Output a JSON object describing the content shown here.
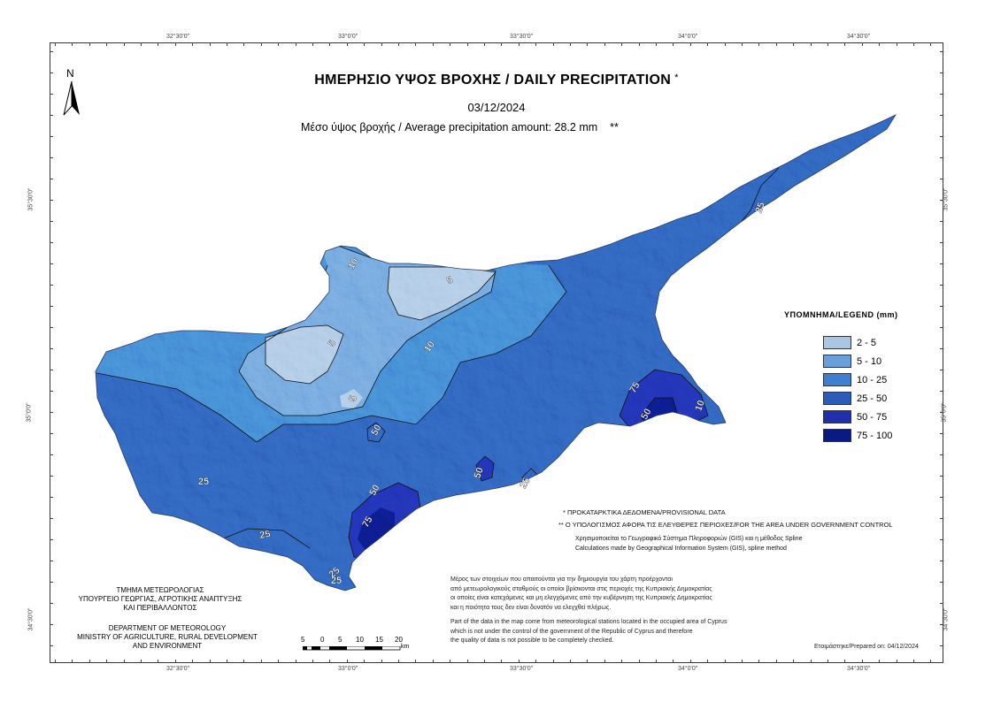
{
  "map": {
    "title": "ΗΜΕΡΗΣΙΟ ΥΨΟΣ ΒΡΟΧΗΣ / DAILY PRECIPITATION",
    "title_star": "*",
    "date": "03/12/2024",
    "average_text": "Μέσο ύψος βροχής / Average precipitation amount: 28.2 mm",
    "average_stars": "**"
  },
  "north_label": "N",
  "grid": {
    "lon_labels": [
      "32°30'0\"",
      "33°0'0\"",
      "33°30'0\"",
      "34°0'0\"",
      "34°30'0\""
    ],
    "lat_labels_left": [
      "35°30'0\"",
      "35°0'0\"",
      "34°30'0\""
    ],
    "lat_labels_right": [
      "35°30'0\"",
      "35°0'0\"",
      "34°30'0\""
    ]
  },
  "legend": {
    "title": "ΥΠΟΜΝΗΜΑ/LEGEND (mm)",
    "items": [
      {
        "label": "2 - 5",
        "color": "#a9c6e4"
      },
      {
        "label": "5 - 10",
        "color": "#6b9fdc"
      },
      {
        "label": "10 - 25",
        "color": "#3f7fd1"
      },
      {
        "label": "25 - 50",
        "color": "#2c5cb8"
      },
      {
        "label": "50 - 75",
        "color": "#1f2fae"
      },
      {
        "label": "75 - 100",
        "color": "#0b1a80"
      }
    ]
  },
  "contour_labels": [
    "10",
    "5",
    "5",
    "10",
    "5",
    "25",
    "25",
    "25",
    "50",
    "50",
    "50",
    "75",
    "75",
    "25",
    "25",
    "50",
    "10",
    "25"
  ],
  "notes": {
    "provisional": "* ΠΡΟΚΑΤΑΡΚΤΙΚΑ ΔΕΔΟΜΕΝΑ/PROVISIONAL DATA",
    "govt_area": "** Ο ΥΠΟΛΟΓΙΣΜΟΣ ΑΦΟΡΑ ΤΙΣ ΕΛΕΥΘΕΡΕΣ ΠΕΡΙΟΧΕΣ/FOR THE AREA UNDER GOVERNMENT CONTROL",
    "gis_gr": "Χρησιμοποιείται το Γεωγραφικό Σύστημα Πληροφοριών (GIS) και η μέθοδος Spline",
    "gis_en": "Calculations made by Geographical Information System (GIS), spline method"
  },
  "department": {
    "gr_line1": "ΤΜΗΜΑ ΜΕΤΕΩΡΟΛΟΓΙΑΣ",
    "gr_line2": "ΥΠΟΥΡΓΕΙΟ ΓΕΩΡΓΙΑΣ, ΑΓΡΟΤΙΚΗΣ ΑΝΑΠΤΥΞΗΣ",
    "gr_line3": "ΚΑΙ ΠΕΡΙΒΑΛΛΟΝΤΟΣ",
    "en_line1": "DEPARTMENT OF METEOROLOGY",
    "en_line2": "MINISTRY OF AGRICULTURE, RURAL DEVELOPMENT",
    "en_line3": "AND ENVIRONMENT"
  },
  "scale": {
    "labels": [
      "5",
      "0",
      "5",
      "10",
      "15",
      "20"
    ],
    "unit": "km"
  },
  "disclaimer": {
    "gr": [
      "Μέρος των στοιχείων που απαιτούνται για την δημιουργία του χάρτη προέρχονται",
      "από μετεωρολογικούς σταθμούς οι οποίοι βρίσκονται στις περιοχές της Κυπριακής Δημοκρατίας",
      "οι οποίες είναι κατεχόμενες και μη ελεγχόμενες από την κυβέρνηση της Κυπριακής Δημοκρατίας",
      "και η ποιότητα τους δεν είναι δυνατόν να ελεγχθεί πλήρως."
    ],
    "en": [
      "Part of the data in the map come from meteorological stations located in the occupied area of Cyprus",
      "which is not under the control of the government of the Republic of Cyprus and therefore",
      "the quality of data is not possible to be completely checked."
    ]
  },
  "prepared": "Ετοιμάστηκε/Prepared on: 04/12/2024"
}
